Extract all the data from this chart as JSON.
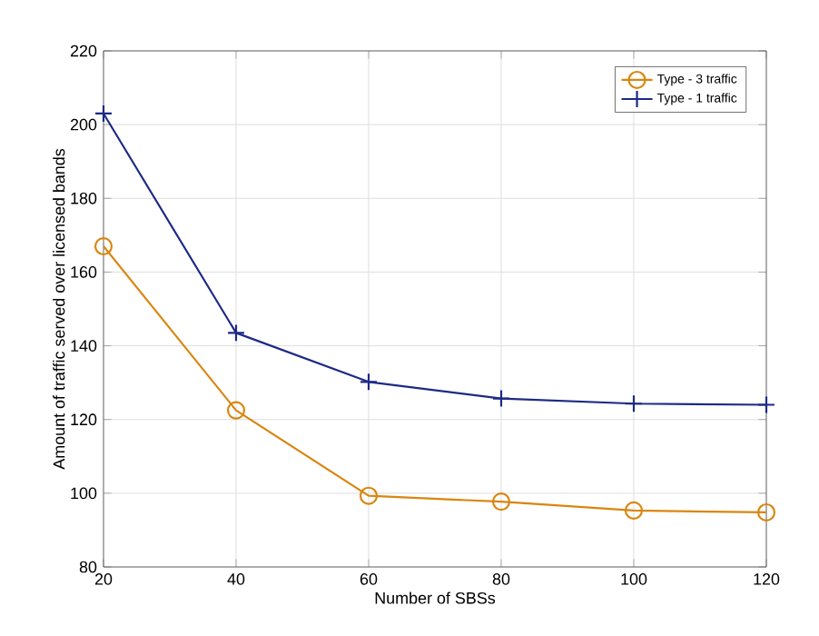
{
  "chart_data": {
    "type": "line",
    "xlabel": "Number of SBSs",
    "ylabel": "Amount of traffic served over licensed bands",
    "x": [
      20,
      40,
      60,
      80,
      100,
      120
    ],
    "series": [
      {
        "name": "Type - 3 traffic",
        "color": "#d9860f",
        "marker": "circle",
        "values": [
          167,
          122.5,
          99.3,
          97.7,
          95.3,
          94.8
        ]
      },
      {
        "name": "Type - 1 traffic",
        "color": "#1c2a85",
        "marker": "cross",
        "values": [
          203,
          143.5,
          130.2,
          125.7,
          124.3,
          124
        ]
      }
    ],
    "xlim": [
      20,
      120
    ],
    "xticks": [
      20,
      40,
      60,
      80,
      100,
      120
    ],
    "ylim": [
      80,
      220
    ],
    "yticks": [
      80,
      100,
      120,
      140,
      160,
      180,
      200,
      220
    ],
    "grid": true,
    "legend": "top right",
    "line_style": "solid"
  }
}
